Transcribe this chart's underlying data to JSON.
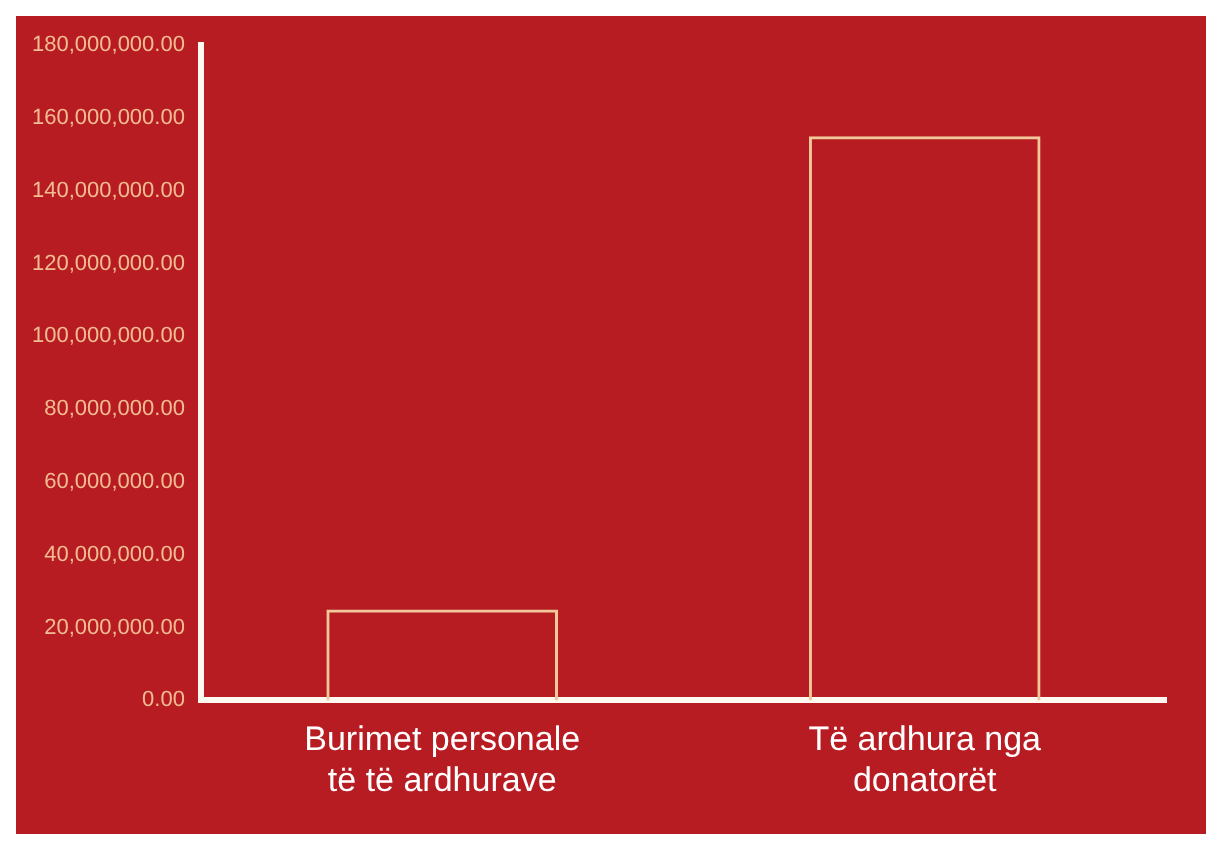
{
  "chart_data": {
    "type": "bar",
    "categories": [
      "Burimet personale të të ardhurave",
      "Të ardhura nga donatorët"
    ],
    "values": [
      25000000,
      155000000
    ],
    "color": "#f0c89a",
    "ylim": [
      0,
      180000000
    ],
    "yticks": [
      {
        "value": 0,
        "label": "0.00"
      },
      {
        "value": 20000000,
        "label": "20,000,000.00"
      },
      {
        "value": 40000000,
        "label": "40,000,000.00"
      },
      {
        "value": 60000000,
        "label": "60,000,000.00"
      },
      {
        "value": 80000000,
        "label": "80,000,000.00"
      },
      {
        "value": 100000000,
        "label": "100,000,000.00"
      },
      {
        "value": 120000000,
        "label": "120,000,000.00"
      },
      {
        "value": 140000000,
        "label": "140,000,000.00"
      },
      {
        "value": 160000000,
        "label": "160,000,000.00"
      },
      {
        "value": 180000000,
        "label": "180,000,000.00"
      }
    ],
    "grid": false,
    "legend": false
  }
}
